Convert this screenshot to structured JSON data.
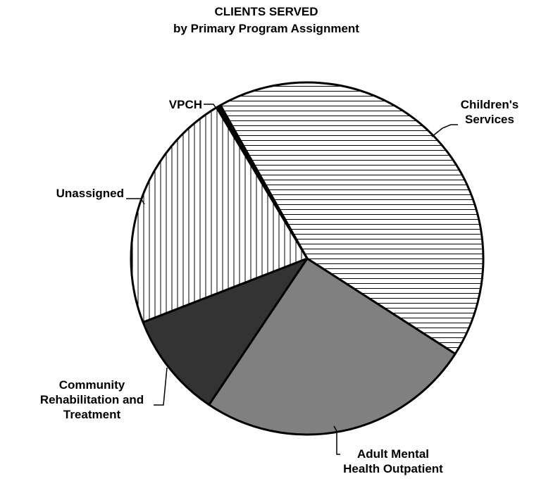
{
  "chart_data": {
    "type": "pie",
    "title": "CLIENTS SERVED",
    "subtitle": "by Primary Program Assignment",
    "categories": [
      "Children's\nServices",
      "Adult Mental\nHealth Outpatient",
      "Community\nRehabilitation and\nTreatment",
      "Unassigned",
      "VPCH"
    ],
    "values": [
      42.3,
      25.3,
      9.7,
      22.3,
      0.4
    ],
    "colors": [
      "#ffffff",
      "#808080",
      "#333333",
      "#ffffff",
      "#000000"
    ],
    "patterns": [
      "horizontal",
      null,
      null,
      "vertical",
      null
    ]
  }
}
